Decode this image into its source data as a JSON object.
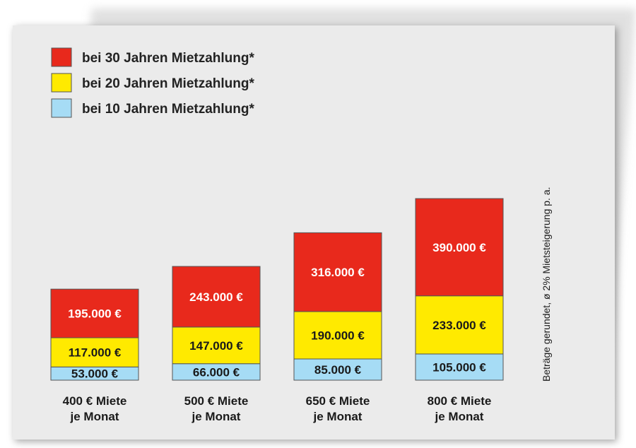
{
  "chart_data": {
    "type": "bar",
    "stacked": true,
    "categories": [
      [
        "400 € Miete",
        "je Monat"
      ],
      [
        "500 € Miete",
        "je Monat"
      ],
      [
        "650 € Miete",
        "je Monat"
      ],
      [
        "800 € Miete",
        "je Monat"
      ]
    ],
    "series": [
      {
        "name": "bei 10 Jahren Mietzahlung*",
        "color": "#a6dcf5",
        "values": [
          53000,
          66000,
          85000,
          105000
        ],
        "labels": [
          "53.000 €",
          "66.000 €",
          "85.000 €",
          "105.000 €"
        ],
        "label_color": "dark"
      },
      {
        "name": "bei 20 Jahren Mietzahlung*",
        "color": "#ffea00",
        "values": [
          117000,
          147000,
          190000,
          233000
        ],
        "labels": [
          "117.000 €",
          "147.000 €",
          "190.000 €",
          "233.000 €"
        ],
        "label_color": "dark"
      },
      {
        "name": "bei 30 Jahren Mietzahlung*",
        "color": "#e8291c",
        "values": [
          195000,
          243000,
          316000,
          390000
        ],
        "labels": [
          "195.000 €",
          "243.000 €",
          "316.000 €",
          "390.000 €"
        ],
        "label_color": "light"
      }
    ],
    "legend_order": [
      2,
      1,
      0
    ],
    "legend_position": "top-left",
    "footnote": "Beträge gerundet, ø 2% Mietsteigerung p. a.",
    "grid": false,
    "title": "",
    "xlabel": "",
    "ylabel": ""
  }
}
